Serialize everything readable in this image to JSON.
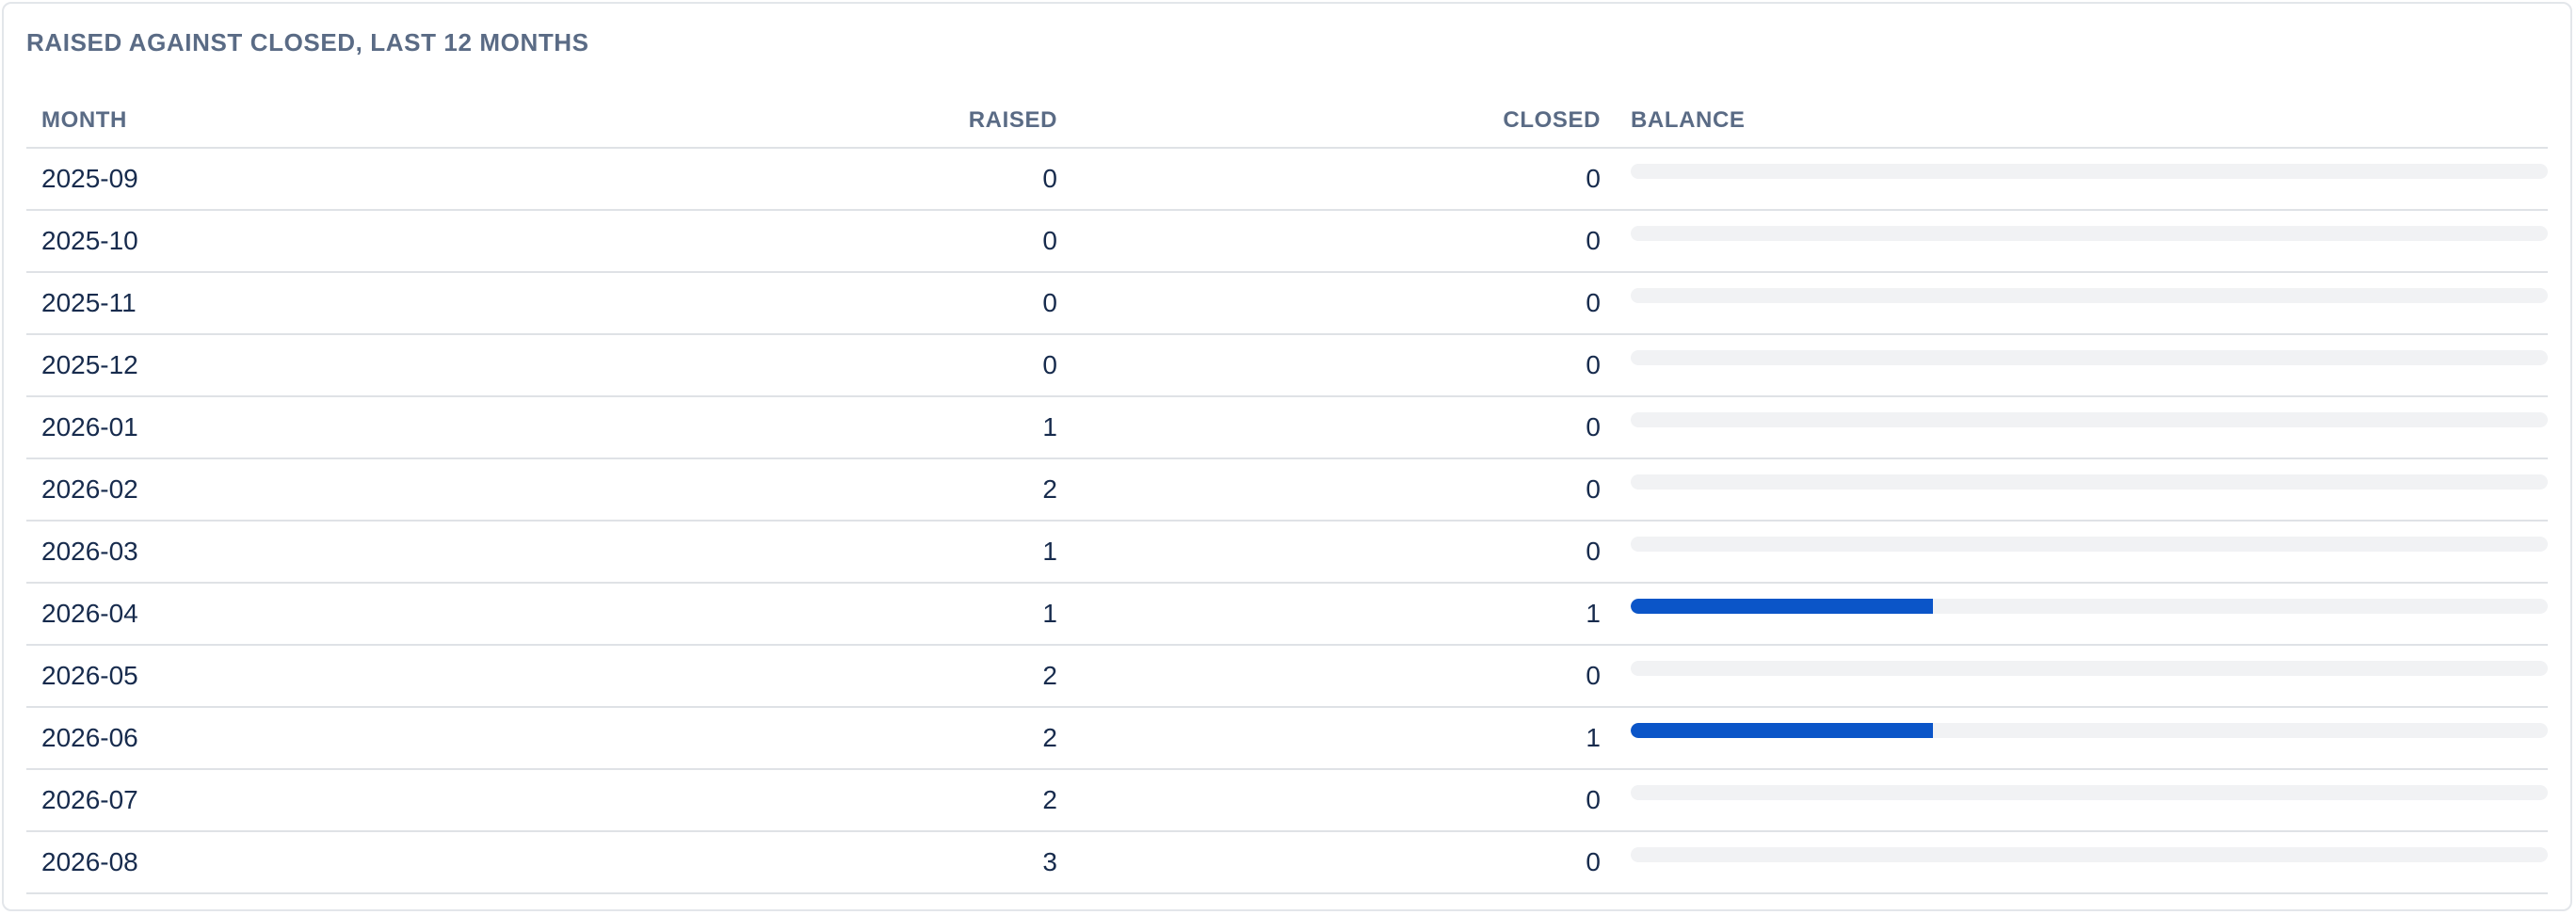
{
  "card": {
    "title": "RAISED AGAINST CLOSED, LAST 12 MONTHS"
  },
  "table": {
    "headers": {
      "month": "MONTH",
      "raised": "RAISED",
      "closed": "CLOSED",
      "balance": "BALANCE"
    },
    "colors": {
      "bar_fill": "#0b55c8",
      "bar_track": "#f1f2f4"
    },
    "rows": [
      {
        "month": "2025-09",
        "raised": "0",
        "closed": "0",
        "balance_fraction": 0
      },
      {
        "month": "2025-10",
        "raised": "0",
        "closed": "0",
        "balance_fraction": 0
      },
      {
        "month": "2025-11",
        "raised": "0",
        "closed": "0",
        "balance_fraction": 0
      },
      {
        "month": "2025-12",
        "raised": "0",
        "closed": "0",
        "balance_fraction": 0
      },
      {
        "month": "2026-01",
        "raised": "1",
        "closed": "0",
        "balance_fraction": 0
      },
      {
        "month": "2026-02",
        "raised": "2",
        "closed": "0",
        "balance_fraction": 0
      },
      {
        "month": "2026-03",
        "raised": "1",
        "closed": "0",
        "balance_fraction": 0
      },
      {
        "month": "2026-04",
        "raised": "1",
        "closed": "1",
        "balance_fraction": 0.33
      },
      {
        "month": "2026-05",
        "raised": "2",
        "closed": "0",
        "balance_fraction": 0
      },
      {
        "month": "2026-06",
        "raised": "2",
        "closed": "1",
        "balance_fraction": 0.33
      },
      {
        "month": "2026-07",
        "raised": "2",
        "closed": "0",
        "balance_fraction": 0
      },
      {
        "month": "2026-08",
        "raised": "3",
        "closed": "0",
        "balance_fraction": 0
      }
    ]
  }
}
